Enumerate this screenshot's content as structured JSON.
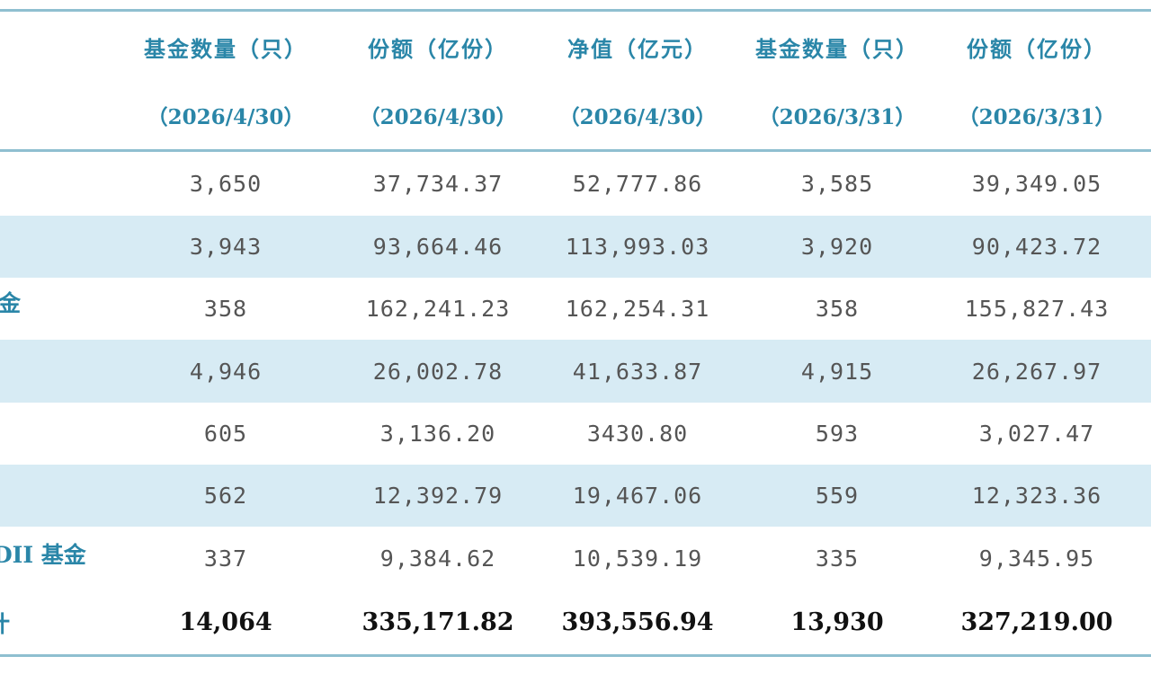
{
  "columns": [
    {
      "label": "基金数量（只）",
      "date": "（2026/4/30）"
    },
    {
      "label": "份额（亿份）",
      "date": "（2026/4/30）"
    },
    {
      "label": "净值（亿元）",
      "date": "（2026/4/30）"
    },
    {
      "label": "基金数量（只）",
      "date": "（2026/3/31）"
    },
    {
      "label": "份额（亿份）",
      "date": "（2026/3/31）"
    }
  ],
  "rows": [
    {
      "label": "",
      "values": [
        "3,650",
        "37,734.37",
        "52,777.86",
        "3,585",
        "39,349.05"
      ]
    },
    {
      "label": "",
      "values": [
        "3,943",
        "93,664.46",
        "113,993.03",
        "3,920",
        "90,423.72"
      ]
    },
    {
      "label": "金",
      "values": [
        "358",
        "162,241.23",
        "162,254.31",
        "358",
        "155,827.43"
      ]
    },
    {
      "label": "",
      "values": [
        "4,946",
        "26,002.78",
        "41,633.87",
        "4,915",
        "26,267.97"
      ]
    },
    {
      "label": "",
      "values": [
        "605",
        "3,136.20",
        "3430.80",
        "593",
        "3,027.47"
      ]
    },
    {
      "label": "",
      "values": [
        "562",
        "12,392.79",
        "19,467.06",
        "559",
        "12,323.36"
      ]
    },
    {
      "label": "DII 基金",
      "values": [
        "337",
        "9,384.62",
        "10,539.19",
        "335",
        "9,345.95"
      ]
    },
    {
      "label": "计",
      "values": [
        "14,064",
        "335,171.82",
        "393,556.94",
        "13,930",
        "327,219.00"
      ]
    }
  ]
}
